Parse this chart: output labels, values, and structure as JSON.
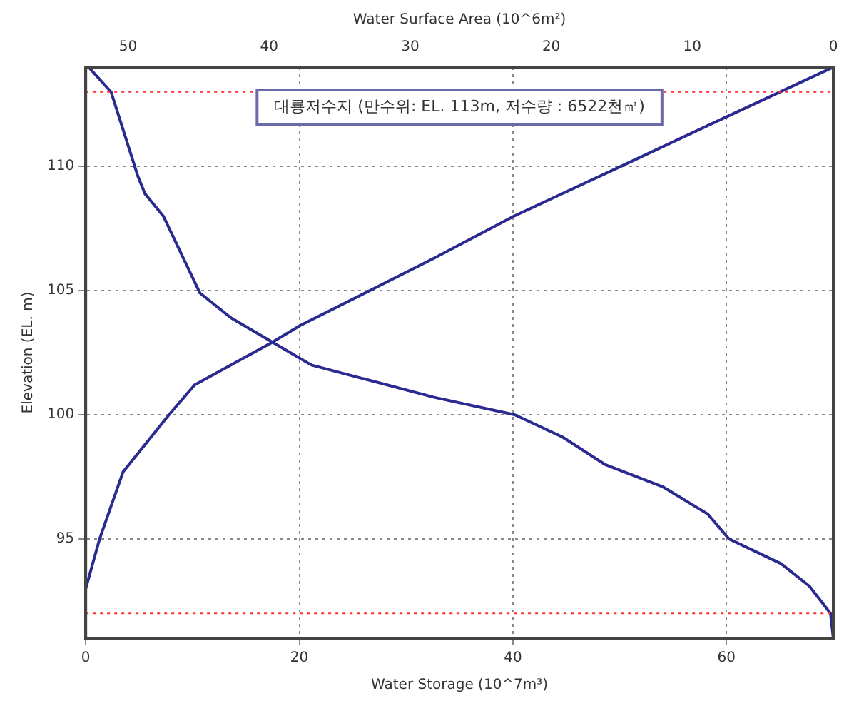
{
  "chart_data": {
    "type": "line",
    "xlabel": "Water Storage (10^7m³)",
    "x2label": "Water Surface Area (10^6m²)",
    "ylabel": "Elevation (EL. m)",
    "annotations": [
      "대룡저수지 (만수위: EL. 113m, 저수량 : 6522천㎥)"
    ],
    "xlim": [
      0,
      70
    ],
    "xticks": [
      0,
      20,
      40,
      60
    ],
    "x2lim": [
      53,
      0
    ],
    "x2ticks": [
      50,
      40,
      30,
      20,
      10,
      0
    ],
    "ylim": [
      91,
      114
    ],
    "yticks": [
      95,
      100,
      105,
      110
    ],
    "grid": true,
    "marker": "none",
    "line_style": "solid",
    "ref_lines": [
      {
        "axis": "y",
        "value": 113,
        "color": "#ff3030",
        "line_style": "dotted"
      },
      {
        "axis": "y",
        "value": 92,
        "color": "#ff3030",
        "line_style": "dotted"
      }
    ],
    "series": [
      {
        "color": "#2a2a90",
        "x": [
          0,
          1.3,
          3.5,
          7.8,
          10.2,
          17.4,
          20.1,
          26.6,
          32.6,
          40.1,
          50.1,
          60,
          70
        ],
        "values": [
          93,
          95,
          97.7,
          100,
          101.2,
          102.9,
          103.6,
          105,
          106.3,
          108,
          110,
          112,
          114
        ]
      },
      {
        "color": "#2a2a90",
        "axis": "x2",
        "x": [
          52.8,
          51.2,
          49.3,
          48.8,
          47.5,
          44.9,
          42.7,
          39.7,
          37,
          28.3,
          22.6,
          19.2,
          16.2,
          12.1,
          8.9,
          7.4,
          3.7,
          1.7,
          0.2,
          0
        ],
        "values": [
          114,
          113,
          109.6,
          108.9,
          108,
          104.9,
          103.9,
          102.9,
          102,
          100.7,
          100,
          99.1,
          98,
          97.1,
          96,
          95,
          94,
          93.1,
          92,
          91
        ]
      }
    ]
  }
}
